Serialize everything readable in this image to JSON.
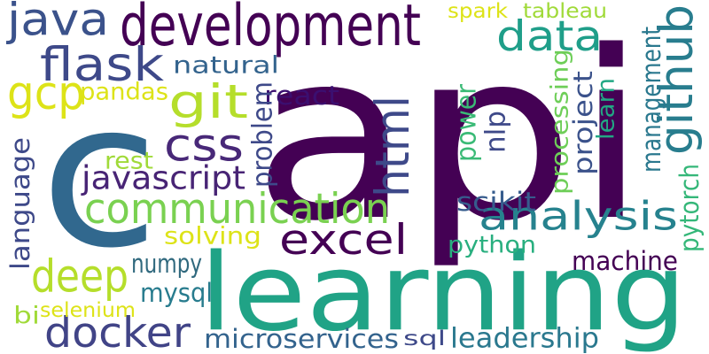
{
  "words": [
    {
      "id": "api",
      "text": "api",
      "color": "#440154"
    },
    {
      "id": "c",
      "text": "c",
      "color": "#31688e"
    },
    {
      "id": "learning",
      "text": "learning",
      "color": "#20a386"
    },
    {
      "id": "development",
      "text": "development",
      "color": "#440154"
    },
    {
      "id": "java",
      "text": "java",
      "color": "#3b528b"
    },
    {
      "id": "flask",
      "text": "flask",
      "color": "#3e4989"
    },
    {
      "id": "data",
      "text": "data",
      "color": "#1f9e89"
    },
    {
      "id": "github",
      "text": "github",
      "color": "#287d8e"
    },
    {
      "id": "gcp",
      "text": "gcp",
      "color": "#dde318"
    },
    {
      "id": "git",
      "text": "git",
      "color": "#b5de2b"
    },
    {
      "id": "pandas",
      "text": "pandas",
      "color": "#dde318"
    },
    {
      "id": "natural",
      "text": "natural",
      "color": "#33638d"
    },
    {
      "id": "css",
      "text": "css",
      "color": "#482878"
    },
    {
      "id": "html",
      "text": "html",
      "color": "#3e4989"
    },
    {
      "id": "react",
      "text": "react",
      "color": "#3b0f70"
    },
    {
      "id": "problem",
      "text": "problem",
      "color": "#3e4989"
    },
    {
      "id": "javascript",
      "text": "javascript",
      "color": "#482475"
    },
    {
      "id": "rest",
      "text": "rest",
      "color": "#a0da39"
    },
    {
      "id": "communication",
      "text": "communication",
      "color": "#7ad151"
    },
    {
      "id": "analysis",
      "text": "analysis",
      "color": "#26828e"
    },
    {
      "id": "excel",
      "text": "excel",
      "color": "#440154"
    },
    {
      "id": "language",
      "text": "language",
      "color": "#3e4989"
    },
    {
      "id": "solving",
      "text": "solving",
      "color": "#dde318"
    },
    {
      "id": "deep",
      "text": "deep",
      "color": "#b5de2b"
    },
    {
      "id": "numpy",
      "text": "numpy",
      "color": "#30697e"
    },
    {
      "id": "mysql",
      "text": "mysql",
      "color": "#287c8e"
    },
    {
      "id": "docker",
      "text": "docker",
      "color": "#414487"
    },
    {
      "id": "bi",
      "text": "bi",
      "color": "#a0da39"
    },
    {
      "id": "selenium",
      "text": "selenium",
      "color": "#dde318"
    },
    {
      "id": "microservices",
      "text": "microservices",
      "color": "#33638d"
    },
    {
      "id": "sql",
      "text": "sql",
      "color": "#3e4989"
    },
    {
      "id": "leadership",
      "text": "leadership",
      "color": "#2a788e"
    },
    {
      "id": "machine",
      "text": "machine",
      "color": "#440154"
    },
    {
      "id": "python",
      "text": "python",
      "color": "#29af7f"
    },
    {
      "id": "scikit",
      "text": "scikit",
      "color": "#365c8d"
    },
    {
      "id": "power",
      "text": "power",
      "color": "#3aba76"
    },
    {
      "id": "nlp",
      "text": "nlp",
      "color": "#3e4989"
    },
    {
      "id": "processing",
      "text": "processing",
      "color": "#6ece58"
    },
    {
      "id": "project",
      "text": "project",
      "color": "#3b528b"
    },
    {
      "id": "learn",
      "text": "learn",
      "color": "#22a884"
    },
    {
      "id": "management",
      "text": "management",
      "color": "#2a788e"
    },
    {
      "id": "pytorch",
      "text": "pytorch",
      "color": "#35b779"
    },
    {
      "id": "spark",
      "text": "spark",
      "color": "#dde318"
    },
    {
      "id": "tableau",
      "text": "tableau",
      "color": "#a0da39"
    }
  ]
}
